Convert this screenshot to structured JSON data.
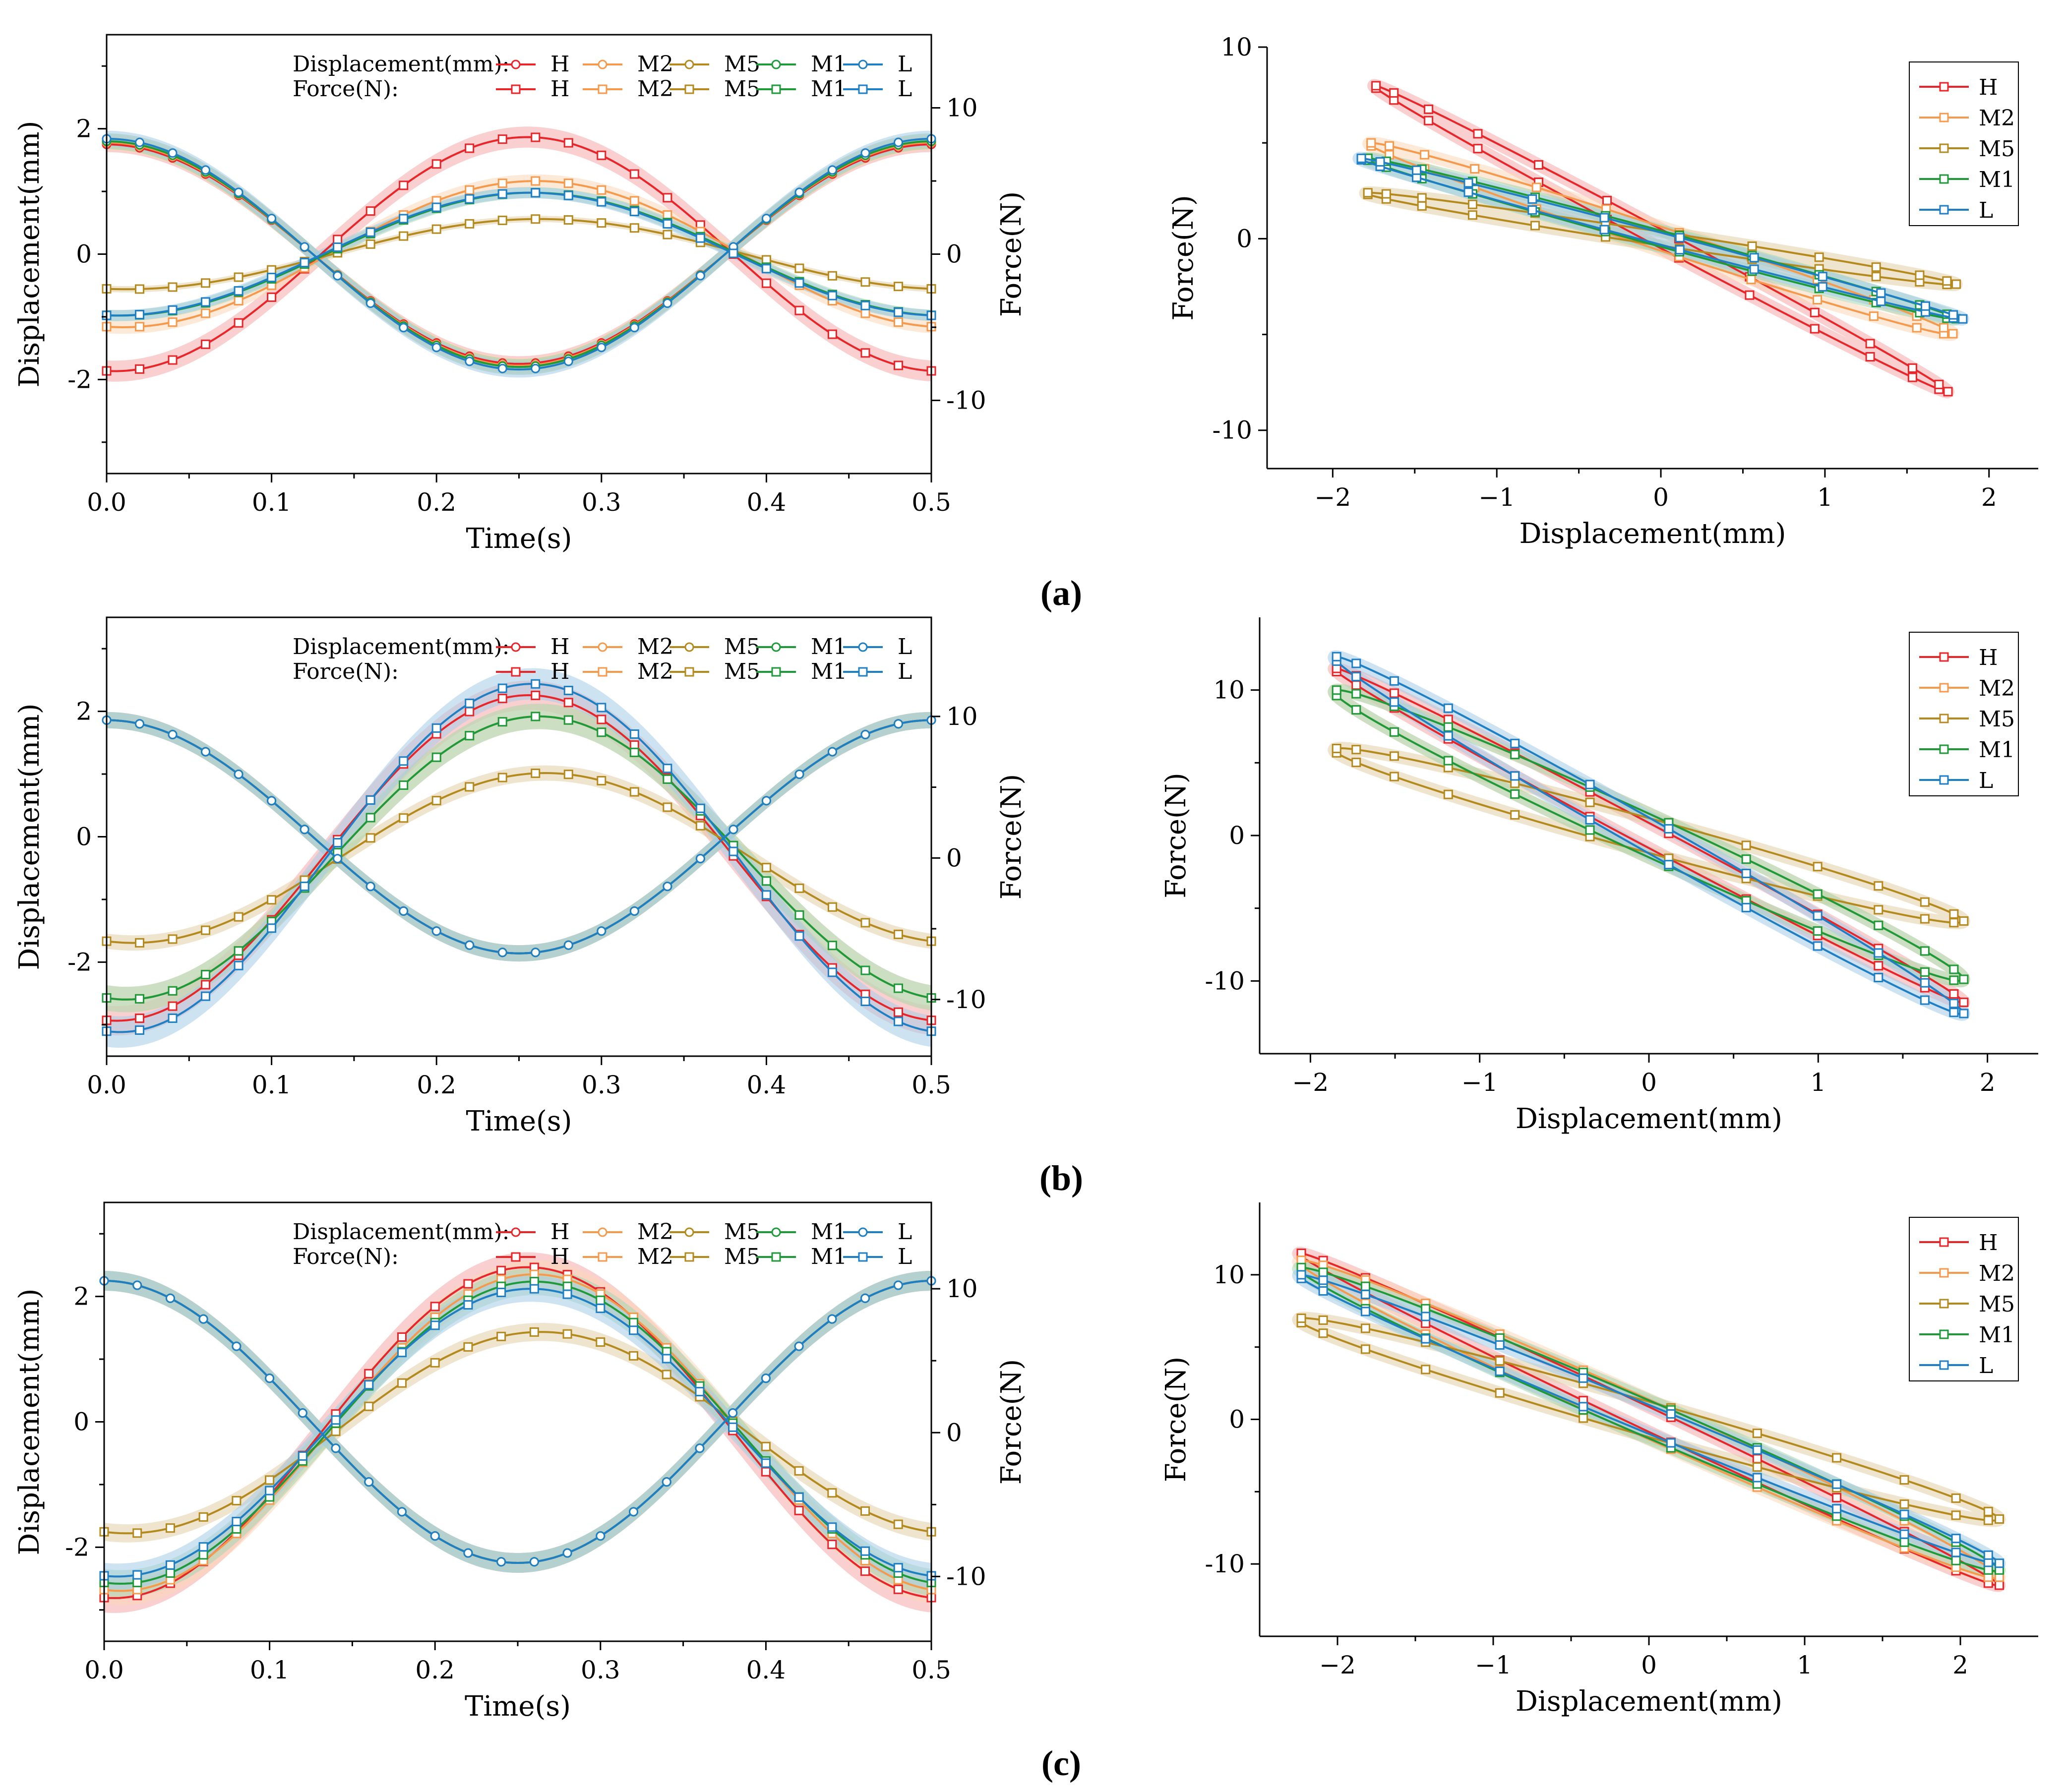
{
  "figure": {
    "panel_labels": [
      "(a)",
      "(b)",
      "(c)"
    ],
    "legend_row_labels": [
      "Displacement(mm):",
      "Force(N):"
    ],
    "series_names": [
      "H",
      "M2",
      "M5",
      "M1",
      "L"
    ],
    "colors": {
      "H": "#e8262a",
      "M2": "#f59a4d",
      "M5": "#b48a1f",
      "M1": "#1e9a3a",
      "L": "#1f7fc4"
    },
    "marker_styles": {
      "displacement": "circle",
      "force": "square"
    }
  },
  "chart_data": [
    {
      "id": "a-time",
      "type": "line",
      "panel": "(a)",
      "title": "",
      "xlabel": "Time(s)",
      "ylabel": "Displacement(mm)",
      "y2label": "Force(N)",
      "xlim": [
        0,
        0.5
      ],
      "ylim": [
        -3.5,
        3.5
      ],
      "y2lim": [
        -15,
        15
      ],
      "xticks": [
        "0.0",
        "0.1",
        "0.2",
        "0.3",
        "0.4",
        "0.5"
      ],
      "yticks": [
        "2",
        "0",
        "-2"
      ],
      "y2ticks": [
        "10",
        "0",
        "-10"
      ],
      "displacement_waveform": "cos(4*pi*t)",
      "displacement_amplitude_mm": {
        "H": 1.75,
        "M2": 1.78,
        "M5": 1.8,
        "M1": 1.8,
        "L": 1.84
      },
      "force_amplitude_N": {
        "H": 8.0,
        "M2": 5.0,
        "M5": 2.4,
        "M1": 4.2,
        "L": 4.2
      },
      "force_phase_lag_s": {
        "H": 0.005,
        "M2": 0.01,
        "M5": 0.012,
        "M1": 0.008,
        "L": 0.006
      }
    },
    {
      "id": "a-loop",
      "type": "line",
      "panel": "(a)",
      "title": "",
      "xlabel": "Displacement(mm)",
      "ylabel": "Force(N)",
      "xlim": [
        -2.4,
        2.3
      ],
      "ylim": [
        -12,
        10
      ],
      "xticks": [
        "-2",
        "-1",
        "0",
        "1",
        "2"
      ],
      "yticks": [
        "10",
        "0",
        "-10"
      ],
      "loop_points": "force vs displacement of the time series above"
    },
    {
      "id": "b-time",
      "type": "line",
      "panel": "(b)",
      "title": "",
      "xlabel": "Time(s)",
      "ylabel": "Displacement(mm)",
      "y2label": "Force(N)",
      "xlim": [
        0,
        0.5
      ],
      "ylim": [
        -3.5,
        3.5
      ],
      "y2lim": [
        -14,
        17
      ],
      "xticks": [
        "0.0",
        "0.1",
        "0.2",
        "0.3",
        "0.4",
        "0.5"
      ],
      "yticks": [
        "2",
        "0",
        "-2"
      ],
      "y2ticks": [
        "10",
        "0",
        "-10"
      ],
      "displacement_waveform": "cos(4*pi*t)",
      "displacement_amplitude_mm": {
        "H": 1.86,
        "M2": 1.86,
        "M5": 1.86,
        "M1": 1.86,
        "L": 1.86
      },
      "force_amplitude_N": {
        "H": 11.5,
        "M2": 10.0,
        "M5": 6.0,
        "M1": 10.0,
        "L": 12.3
      },
      "force_phase_lag_s": {
        "H": 0.006,
        "M2": 0.012,
        "M5": 0.016,
        "M1": 0.012,
        "L": 0.008
      }
    },
    {
      "id": "b-loop",
      "type": "line",
      "panel": "(b)",
      "title": "",
      "xlabel": "Displacement(mm)",
      "ylabel": "Force(N)",
      "xlim": [
        -2.3,
        2.3
      ],
      "ylim": [
        -15,
        15
      ],
      "xticks": [
        "-2",
        "-1",
        "0",
        "1",
        "2"
      ],
      "yticks": [
        "10",
        "0",
        "-10"
      ],
      "loop_points": "force vs displacement of the time series above"
    },
    {
      "id": "c-time",
      "type": "line",
      "panel": "(c)",
      "title": "",
      "xlabel": "Time(s)",
      "ylabel": "Displacement(mm)",
      "y2label": "Force(N)",
      "xlim": [
        0,
        0.5
      ],
      "ylim": [
        -3.5,
        3.5
      ],
      "y2lim": [
        -14.5,
        16
      ],
      "xticks": [
        "0.0",
        "0.1",
        "0.2",
        "0.3",
        "0.4",
        "0.5"
      ],
      "yticks": [
        "2",
        "0",
        "-2"
      ],
      "y2ticks": [
        "10",
        "0",
        "-10"
      ],
      "displacement_waveform": "cos(4*pi*t)",
      "displacement_amplitude_mm": {
        "H": 2.25,
        "M2": 2.25,
        "M5": 2.25,
        "M1": 2.25,
        "L": 2.25
      },
      "force_amplitude_N": {
        "H": 11.5,
        "M2": 11.0,
        "M5": 7.0,
        "M1": 10.5,
        "L": 10.0
      },
      "force_phase_lag_s": {
        "H": 0.006,
        "M2": 0.01,
        "M5": 0.014,
        "M1": 0.01,
        "L": 0.008
      }
    },
    {
      "id": "c-loop",
      "type": "line",
      "panel": "(c)",
      "title": "",
      "xlabel": "Displacement(mm)",
      "ylabel": "Force(N)",
      "xlim": [
        -2.5,
        2.5
      ],
      "ylim": [
        -15,
        15
      ],
      "xticks": [
        "-2",
        "-1",
        "0",
        "1",
        "2"
      ],
      "yticks": [
        "10",
        "0",
        "-10"
      ],
      "loop_points": "force vs displacement of the time series above"
    }
  ]
}
